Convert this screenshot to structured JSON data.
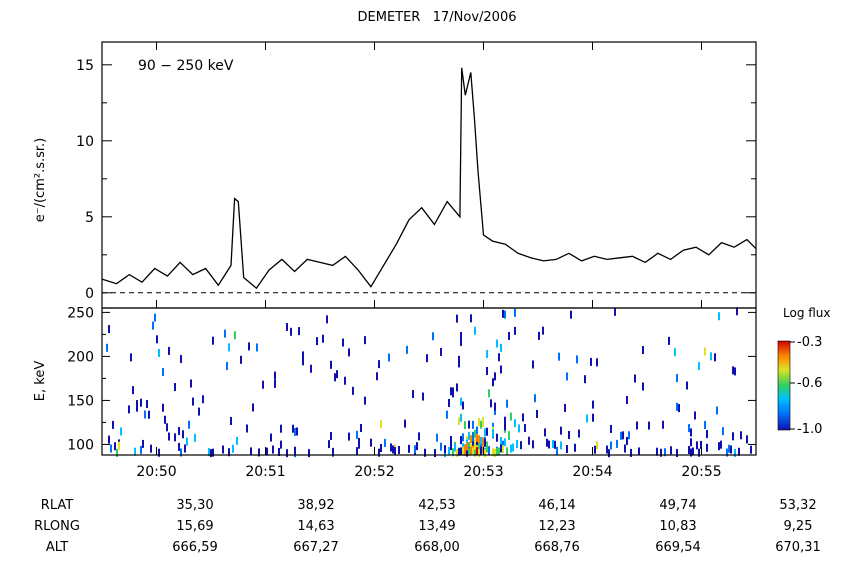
{
  "chart_data": [
    {
      "type": "line",
      "title": "DEMETER   17/Nov/2006",
      "annotation": "90 − 250 keV",
      "ylabel": "e⁻/(cm².s.sr.)",
      "xlabel": "",
      "xlim": [
        "20:49:30",
        "20:55:30"
      ],
      "ylim": [
        -1.0,
        16.5
      ],
      "yticks": [
        0,
        5,
        10,
        15
      ],
      "baseline": {
        "value": 0,
        "style": "dashed"
      },
      "grid": false,
      "series": [
        {
          "x": [
            "20:49:30",
            "20:49:38",
            "20:49:45",
            "20:49:52",
            "20:49:59",
            "20:50:06",
            "20:50:13",
            "20:50:20",
            "20:50:27",
            "20:50:34",
            "20:50:41",
            "20:50:43",
            "20:50:45",
            "20:50:48",
            "20:50:55",
            "20:51:02",
            "20:51:09",
            "20:51:16",
            "20:51:23",
            "20:51:30",
            "20:51:37",
            "20:51:44",
            "20:51:51",
            "20:51:58",
            "20:52:05",
            "20:52:12",
            "20:52:19",
            "20:52:26",
            "20:52:33",
            "20:52:40",
            "20:52:47",
            "20:52:48",
            "20:52:50",
            "20:52:53",
            "20:52:55",
            "20:52:57",
            "20:53:00",
            "20:53:05",
            "20:53:12",
            "20:53:19",
            "20:53:26",
            "20:53:33",
            "20:53:40",
            "20:53:47",
            "20:53:54",
            "20:54:01",
            "20:54:08",
            "20:54:15",
            "20:54:22",
            "20:54:29",
            "20:54:36",
            "20:54:43",
            "20:54:50",
            "20:54:57",
            "20:55:04",
            "20:55:11",
            "20:55:18",
            "20:55:25",
            "20:55:30"
          ],
          "values": [
            0.9,
            0.6,
            1.2,
            0.7,
            1.6,
            1.1,
            2.0,
            1.2,
            1.6,
            0.5,
            1.8,
            6.2,
            6.0,
            1.0,
            0.3,
            1.5,
            2.2,
            1.4,
            2.2,
            2.0,
            1.8,
            2.4,
            1.5,
            0.4,
            1.8,
            3.2,
            4.8,
            5.6,
            4.5,
            6.0,
            5.0,
            14.8,
            13.0,
            14.5,
            11.5,
            8.0,
            3.8,
            3.4,
            3.2,
            2.6,
            2.3,
            2.1,
            2.2,
            2.6,
            2.1,
            2.4,
            2.2,
            2.3,
            2.4,
            2.0,
            2.6,
            2.2,
            2.8,
            3.0,
            2.5,
            3.3,
            3.0,
            3.5,
            2.9
          ]
        }
      ]
    },
    {
      "type": "heatmap",
      "ylabel": "E, keV",
      "ylim": [
        88,
        255
      ],
      "yticks": [
        100,
        150,
        200,
        250
      ],
      "xticks": [
        "20:50",
        "20:51",
        "20:52",
        "20:53",
        "20:54",
        "20:55"
      ],
      "colorbar": {
        "title": "Log flux",
        "range": [
          -1.0,
          -0.3
        ],
        "ticks": [
          "-0.3",
          "-0.6",
          "-1.0"
        ]
      },
      "description": "Sparse electron counts; enhanced flux near 20:52:40–20:53:20 at low energies (90–130 keV)"
    }
  ],
  "orbit_table": {
    "rows": [
      {
        "label": "RLAT",
        "values": [
          "35,30",
          "38,92",
          "42,53",
          "46,14",
          "49,74",
          "53,32"
        ]
      },
      {
        "label": "RLONG",
        "values": [
          "15,69",
          "14,63",
          "13,49",
          "12,23",
          "10,83",
          "9,25"
        ]
      },
      {
        "label": "ALT",
        "values": [
          "666,59",
          "667,27",
          "668,00",
          "668,76",
          "669,54",
          "670,31"
        ]
      }
    ]
  },
  "colors": {
    "line": "#000000",
    "heatmap_scale": [
      "#1010b0",
      "#0070ff",
      "#00c0ff",
      "#30d060",
      "#e0e020",
      "#ff8000",
      "#d00000"
    ]
  }
}
